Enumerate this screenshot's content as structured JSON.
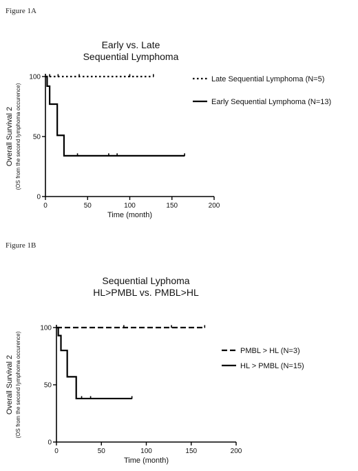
{
  "figure_a_label": "Figure 1A",
  "figure_b_label": "Figure 1B",
  "chart_data": [
    {
      "type": "line",
      "subtype": "kaplan-meier-step",
      "title_lines": [
        "Early vs. Late",
        "Sequential Lymphoma"
      ],
      "xlabel": "Time (month)",
      "ylabel": "Overall Survival 2",
      "ylabel_sub": "(OS from the second lymphoma occurence)",
      "xlim": [
        0,
        200
      ],
      "ylim": [
        0,
        100
      ],
      "xticks": [
        0,
        50,
        100,
        150,
        200
      ],
      "yticks": [
        0,
        50,
        100
      ],
      "legend_position": "right",
      "series": [
        {
          "name": "Late Sequential Lymphoma (N=5)",
          "style": "dotted",
          "steps": [
            [
              0,
              100
            ],
            [
              128,
              100
            ]
          ],
          "censor": [
            5,
            15,
            40,
            100,
            128
          ]
        },
        {
          "name": "Early Sequential Lymphoma (N=13)",
          "style": "solid",
          "steps": [
            [
              0,
              100
            ],
            [
              2,
              92
            ],
            [
              5,
              77
            ],
            [
              12,
              77
            ],
            [
              14,
              51
            ],
            [
              22,
              51
            ],
            [
              22,
              34
            ],
            [
              165,
              34
            ]
          ],
          "censor": [
            38,
            75,
            85,
            165
          ]
        }
      ]
    },
    {
      "type": "line",
      "subtype": "kaplan-meier-step",
      "title_lines": [
        "Sequential Lyphoma",
        "HL>PMBL vs. PMBL>HL"
      ],
      "xlabel": "Time (month)",
      "ylabel": "Overall Survival 2",
      "ylabel_sub": "(OS from the second lymphoma occurence)",
      "xlim": [
        0,
        200
      ],
      "ylim": [
        0,
        100
      ],
      "xticks": [
        0,
        50,
        100,
        150,
        200
      ],
      "yticks": [
        0,
        50,
        100
      ],
      "legend_position": "right",
      "series": [
        {
          "name": "PMBL > HL (N=3)",
          "style": "dashed",
          "steps": [
            [
              0,
              100
            ],
            [
              165,
              100
            ]
          ],
          "censor": [
            75,
            128,
            165
          ]
        },
        {
          "name": "HL > PMBL (N=15)",
          "style": "solid",
          "steps": [
            [
              0,
              100
            ],
            [
              2,
              93
            ],
            [
              5,
              80
            ],
            [
              10,
              80
            ],
            [
              12,
              57
            ],
            [
              20,
              57
            ],
            [
              22,
              38
            ],
            [
              84,
              38
            ]
          ],
          "censor": [
            28,
            38,
            84
          ]
        }
      ]
    }
  ]
}
